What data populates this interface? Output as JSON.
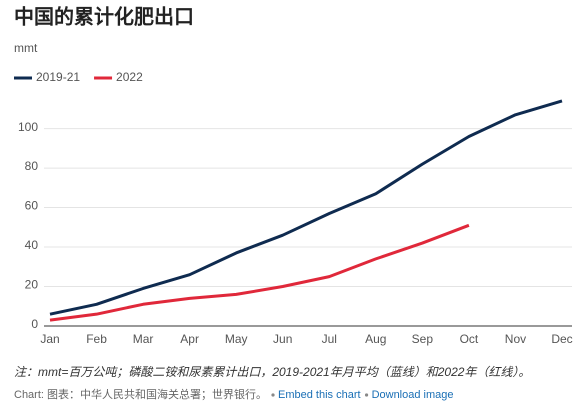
{
  "chart_data": {
    "type": "line",
    "title": "中国的累计化肥出口",
    "subtitle": "mmt",
    "categories": [
      "Jan",
      "Feb",
      "Mar",
      "Apr",
      "May",
      "Jun",
      "Jul",
      "Aug",
      "Sep",
      "Oct",
      "Nov",
      "Dec"
    ],
    "series": [
      {
        "name": "2019-21",
        "color": "#0f2b50",
        "values": [
          6,
          11,
          19,
          26,
          37,
          46,
          57,
          67,
          82,
          96,
          107,
          114
        ]
      },
      {
        "name": "2022",
        "color": "#e0283a",
        "values": [
          3,
          6,
          11,
          14,
          16,
          20,
          25,
          34,
          42,
          51,
          null,
          null
        ]
      }
    ],
    "ylim": [
      0,
      116
    ],
    "yticks": [
      0,
      20,
      40,
      60,
      80,
      100
    ],
    "grid": true,
    "legend": "top-left",
    "note": "注：mmt=百万公吨；磷酸二铵和尿素累计出口，2019-2021年月平均（蓝线）和2022年（红线）。",
    "source": "Chart: 图表：中华人民共和国海关总署；世界银行。",
    "links": [
      "Embed this chart",
      "Download image"
    ]
  }
}
